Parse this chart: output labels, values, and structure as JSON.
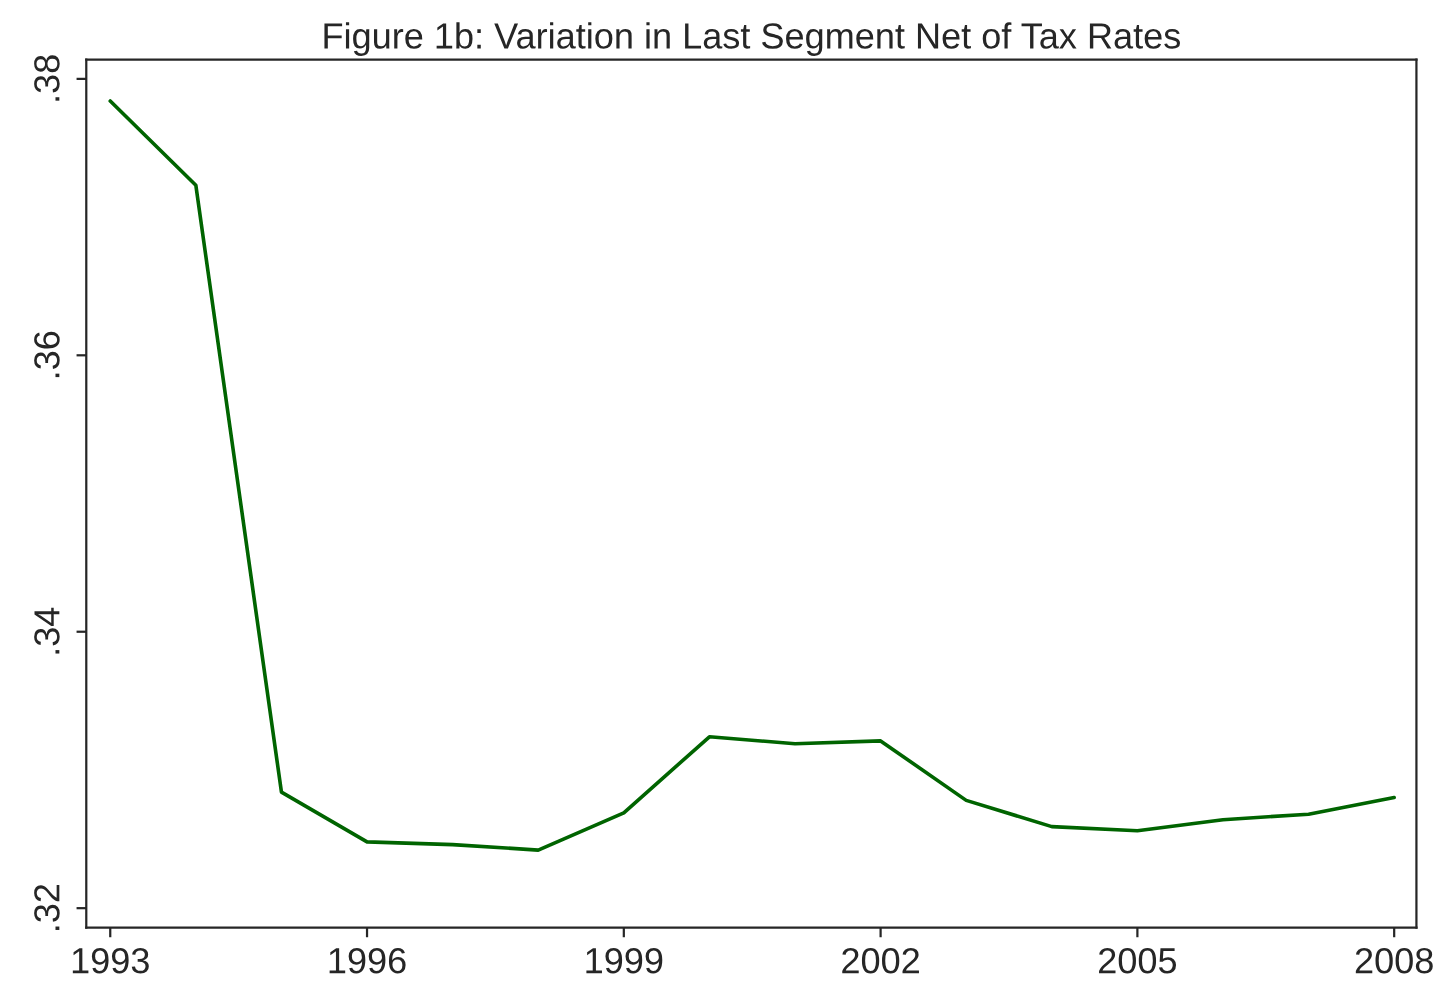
{
  "chart_data": {
    "type": "line",
    "title": "Figure 1b: Variation in Last Segment Net of Tax Rates",
    "x": [
      1993,
      1994,
      1995,
      1996,
      1997,
      1998,
      1999,
      2000,
      2001,
      2002,
      2003,
      2004,
      2005,
      2006,
      2007,
      2008
    ],
    "series": [
      {
        "color": "#006400",
        "values": [
          0.3784,
          0.3723,
          0.3284,
          0.3248,
          0.3246,
          0.3242,
          0.3269,
          0.3324,
          0.3319,
          0.3321,
          0.3278,
          0.3259,
          0.3256,
          0.3264,
          0.3268,
          0.328
        ]
      }
    ],
    "xlim": [
      1992.72,
      2008.26
    ],
    "ylim": [
      0.3186,
      0.3814
    ],
    "xticks": [
      1993,
      1996,
      1999,
      2002,
      2005,
      2008
    ],
    "yticks": [
      {
        "value": 0.32,
        "label": ".32"
      },
      {
        "value": 0.34,
        "label": ".34"
      },
      {
        "value": 0.36,
        "label": ".36"
      },
      {
        "value": 0.38,
        "label": ".38"
      }
    ],
    "grid": false,
    "legend": false,
    "marker": "none",
    "line_style": "solid"
  }
}
